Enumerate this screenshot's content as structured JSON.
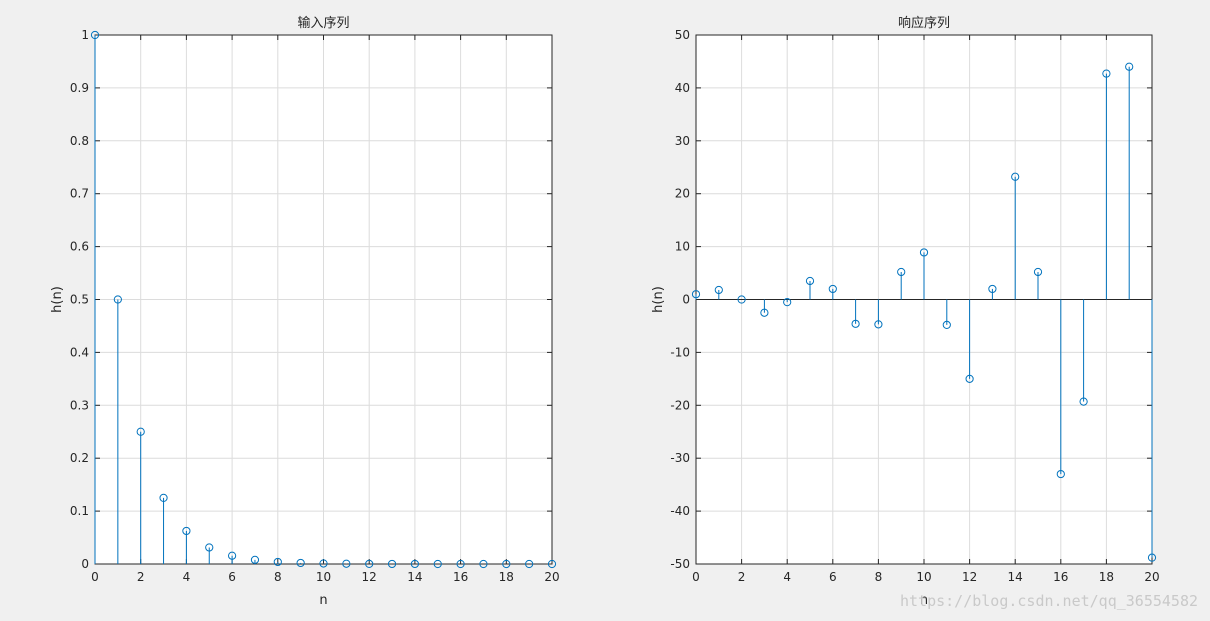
{
  "chart_data": [
    {
      "type": "stem",
      "title": "输入序列",
      "xlabel": "n",
      "ylabel": "h(n)",
      "xlim": [
        0,
        20
      ],
      "ylim": [
        0,
        1
      ],
      "xticks": [
        "0",
        "2",
        "4",
        "6",
        "8",
        "10",
        "12",
        "14",
        "16",
        "18",
        "20"
      ],
      "yticks": [
        "0",
        "0.1",
        "0.2",
        "0.3",
        "0.4",
        "0.5",
        "0.6",
        "0.7",
        "0.8",
        "0.9",
        "1"
      ],
      "grid": true,
      "color": "#0072BD",
      "x": [
        0,
        1,
        2,
        3,
        4,
        5,
        6,
        7,
        8,
        9,
        10,
        11,
        12,
        13,
        14,
        15,
        16,
        17,
        18,
        19,
        20
      ],
      "values": [
        1,
        0.5,
        0.25,
        0.125,
        0.0625,
        0.03125,
        0.015625,
        0.0078125,
        0.0039,
        0.002,
        0.001,
        0.0005,
        0.0002,
        0.0001,
        0.0001,
        0,
        0,
        0,
        0,
        0,
        0
      ]
    },
    {
      "type": "stem",
      "title": "响应序列",
      "xlabel": "n",
      "ylabel": "h(n)",
      "xlim": [
        0,
        20
      ],
      "ylim": [
        -50,
        50
      ],
      "xticks": [
        "0",
        "2",
        "4",
        "6",
        "8",
        "10",
        "12",
        "14",
        "16",
        "18",
        "20"
      ],
      "yticks": [
        "-50",
        "-40",
        "-30",
        "-20",
        "-10",
        "0",
        "10",
        "20",
        "30",
        "40",
        "50"
      ],
      "grid": true,
      "color": "#0072BD",
      "x": [
        0,
        1,
        2,
        3,
        4,
        5,
        6,
        7,
        8,
        9,
        10,
        11,
        12,
        13,
        14,
        15,
        16,
        17,
        18,
        19,
        20
      ],
      "values": [
        1,
        1.8,
        0,
        -2.5,
        -0.5,
        3.5,
        2,
        -4.6,
        -4.7,
        5.2,
        8.9,
        -4.8,
        -15,
        2,
        23.2,
        5.2,
        -33,
        -19.3,
        42.7,
        44,
        -48.8
      ]
    }
  ],
  "watermark": "https://blog.csdn.net/qq_36554582"
}
